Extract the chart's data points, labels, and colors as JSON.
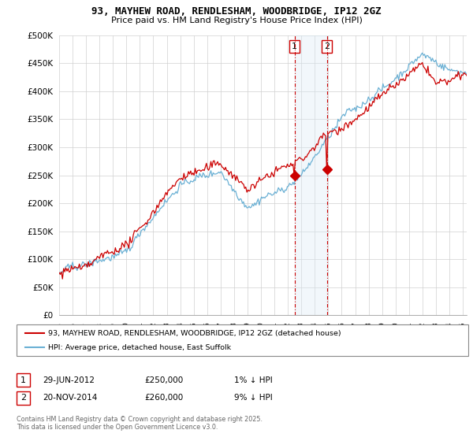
{
  "title": "93, MAYHEW ROAD, RENDLESHAM, WOODBRIDGE, IP12 2GZ",
  "subtitle": "Price paid vs. HM Land Registry's House Price Index (HPI)",
  "ylim": [
    0,
    500000
  ],
  "yticks": [
    0,
    50000,
    100000,
    150000,
    200000,
    250000,
    300000,
    350000,
    400000,
    450000,
    500000
  ],
  "ytick_labels": [
    "£0",
    "£50K",
    "£100K",
    "£150K",
    "£200K",
    "£250K",
    "£300K",
    "£350K",
    "£400K",
    "£450K",
    "£500K"
  ],
  "legend_entry1": "93, MAYHEW ROAD, RENDLESHAM, WOODBRIDGE, IP12 2GZ (detached house)",
  "legend_entry2": "HPI: Average price, detached house, East Suffolk",
  "transaction1_date": "29-JUN-2012",
  "transaction1_price": "£250,000",
  "transaction1_hpi": "1% ↓ HPI",
  "transaction2_date": "20-NOV-2014",
  "transaction2_price": "£260,000",
  "transaction2_hpi": "9% ↓ HPI",
  "footer": "Contains HM Land Registry data © Crown copyright and database right 2025.\nThis data is licensed under the Open Government Licence v3.0.",
  "hpi_color": "#6ab0d4",
  "sale_color": "#cc0000",
  "transaction_box_color": "#cc0000",
  "shading_color": "#daeaf5",
  "sale1_x": 2012.49,
  "sale1_y": 250000,
  "sale2_x": 2014.9,
  "sale2_y": 260000,
  "xlim_start": 1995,
  "xlim_end": 2025.3
}
